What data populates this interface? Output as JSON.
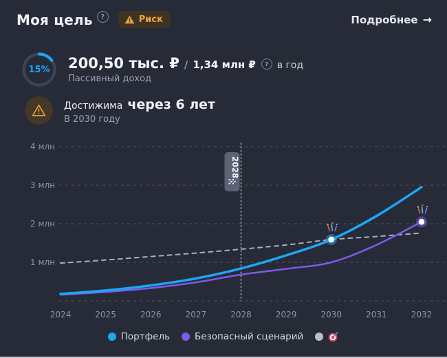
{
  "header": {
    "title": "Моя цель",
    "help_icon": "question-circle",
    "risk_badge": "Риск",
    "details_link": "Подробнее",
    "details_arrow": "→"
  },
  "goal": {
    "progress_percent": "15%",
    "current_income": "200,50 тыс. ₽",
    "separator": "/",
    "target_income": "1,34 млн ₽",
    "period_label": "в год",
    "income_caption": "Пассивный доход",
    "achievable_prefix": "Достижима",
    "achievable_value": "через 6 лет",
    "achievable_caption": "В 2030 году"
  },
  "legend": {
    "portfolio": "Портфель",
    "safe": "Безопасный сценарий",
    "goal_icon": "dartboard"
  },
  "colors": {
    "background": "#272b37",
    "portfolio": "#1ca6f7",
    "safe": "#7e5aec",
    "target_line": "#a7afbe",
    "gridline": "#454c5a",
    "accent_orange": "#f0a23c",
    "progress_blue": "#1ba4f8"
  },
  "chart_data": {
    "type": "line",
    "x": [
      2024,
      2025,
      2026,
      2027,
      2028,
      2029,
      2030,
      2031,
      2032
    ],
    "unit": "млн ₽",
    "ylim": [
      0,
      4.3
    ],
    "grid": "dashed-horizontal",
    "legend_position": "bottom-center",
    "y_gridlines": [
      {
        "value": 0,
        "label": ""
      },
      {
        "value": 1,
        "label": "1 млн"
      },
      {
        "value": 2,
        "label": "2 млн"
      },
      {
        "value": 3,
        "label": "3 млн"
      },
      {
        "value": 4,
        "label": "4 млн"
      }
    ],
    "series": [
      {
        "name": "Цель",
        "style": "dashed",
        "color": "#a7afbe",
        "width": 2,
        "values": [
          0.98,
          1.06,
          1.15,
          1.24,
          1.34,
          1.45,
          1.59,
          1.67,
          1.76
        ]
      },
      {
        "name": "Безопасный сценарий",
        "style": "solid",
        "color": "#7e5aec",
        "width": 2.5,
        "values": [
          0.16,
          0.23,
          0.33,
          0.48,
          0.68,
          0.83,
          1.0,
          1.45,
          2.05
        ]
      },
      {
        "name": "Портфель",
        "style": "solid",
        "color": "#1ca6f7",
        "width": 3.5,
        "values": [
          0.18,
          0.27,
          0.4,
          0.58,
          0.84,
          1.18,
          1.59,
          2.2,
          2.95
        ]
      }
    ],
    "goal_year_marker": {
      "year": 2028,
      "label": "2028",
      "icon": "checkered-flag"
    },
    "milestones": [
      {
        "year": 2030,
        "series": "Портфель",
        "value": 1.59,
        "icon": "fireworks"
      },
      {
        "year": 2032,
        "series": "Безопасный сценарий",
        "value": 2.05,
        "icon": "fireworks"
      }
    ]
  }
}
